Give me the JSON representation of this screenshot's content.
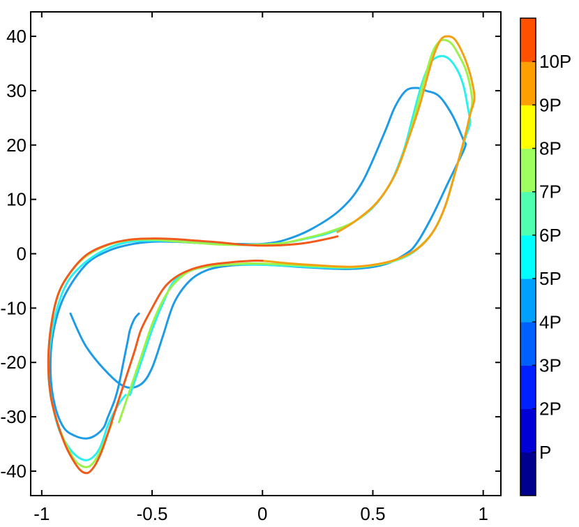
{
  "chart_data": {
    "type": "line",
    "title": "",
    "xlabel": "",
    "ylabel": "",
    "xlim": [
      -1.05,
      1.08
    ],
    "ylim": [
      -44.5,
      44.5
    ],
    "xticks": [
      -1,
      -0.5,
      0,
      0.5,
      1
    ],
    "xtick_labels": [
      "-1",
      "-0.5",
      "0",
      "0.5",
      "1"
    ],
    "yticks": [
      -40,
      -30,
      -20,
      -10,
      0,
      10,
      20,
      30,
      40
    ],
    "ytick_labels": [
      "-40",
      "-30",
      "-20",
      "-10",
      "0",
      "10",
      "20",
      "30",
      "40"
    ],
    "grid": false,
    "series": [
      {
        "color": "#1E9BE6",
        "x": [
          -0.87,
          -0.8,
          -0.7,
          -0.62,
          -0.55,
          -0.5,
          -0.45,
          -0.4,
          -0.33,
          -0.25,
          -0.15,
          -0.05,
          0.05,
          0.2,
          0.4,
          0.55,
          0.65,
          0.7,
          0.77,
          0.84,
          0.9,
          0.92,
          0.91,
          0.86,
          0.8,
          0.74,
          0.7,
          0.65,
          0.6,
          0.55,
          0.45,
          0.35,
          0.22,
          0.1,
          0.0,
          -0.1,
          -0.2,
          -0.3,
          -0.4,
          -0.5,
          -0.6,
          -0.7,
          -0.8,
          -0.9,
          -0.95,
          -0.96,
          -0.94,
          -0.9,
          -0.85,
          -0.8,
          -0.76,
          -0.72,
          -0.7,
          -0.67,
          -0.65,
          -0.63,
          -0.61,
          -0.6,
          -0.58,
          -0.56
        ],
        "y": [
          -11,
          -17,
          -22,
          -24.5,
          -24,
          -21,
          -15,
          -9,
          -5,
          -3,
          -2.2,
          -2,
          -2.1,
          -2.5,
          -2.8,
          -2,
          0,
          2,
          7,
          13,
          18,
          20,
          21,
          25.5,
          29,
          30,
          30.5,
          30,
          27,
          22,
          13,
          8,
          4.5,
          2.5,
          1.8,
          1.8,
          1.8,
          2.0,
          2.2,
          2.2,
          1.7,
          0.5,
          -2.0,
          -8,
          -15,
          -22,
          -28,
          -32,
          -33.5,
          -34,
          -33.5,
          -32,
          -30,
          -27,
          -24,
          -20,
          -16,
          -14,
          -12,
          -11
        ]
      },
      {
        "color": "#2AF0EE",
        "x": [
          -0.6,
          -0.55,
          -0.5,
          -0.45,
          -0.4,
          -0.33,
          -0.25,
          -0.15,
          -0.05,
          0.05,
          0.2,
          0.4,
          0.55,
          0.65,
          0.72,
          0.78,
          0.83,
          0.88,
          0.92,
          0.94,
          0.93,
          0.91,
          0.88,
          0.84,
          0.8,
          0.76,
          0.72,
          0.68,
          0.64,
          0.58,
          0.5,
          0.4,
          0.3,
          0.2,
          0.1,
          0.0,
          -0.1,
          -0.2,
          -0.3,
          -0.4,
          -0.5,
          -0.6,
          -0.7,
          -0.8,
          -0.88,
          -0.93,
          -0.96,
          -0.97,
          -0.95,
          -0.92,
          -0.88,
          -0.84,
          -0.8,
          -0.77,
          -0.74,
          -0.72,
          -0.7,
          -0.67,
          -0.64,
          -0.62
        ],
        "y": [
          -26,
          -20,
          -14,
          -9,
          -5,
          -3.2,
          -2.3,
          -2.0,
          -2.0,
          -2.1,
          -2.4,
          -2.6,
          -1.8,
          -0.5,
          1.5,
          4.5,
          9,
          16,
          21.5,
          24,
          27,
          31,
          34,
          36,
          36.3,
          35,
          31,
          25,
          19,
          13,
          8.5,
          5.5,
          3.8,
          2.8,
          2.0,
          1.7,
          1.7,
          1.9,
          2.1,
          2.3,
          2.4,
          2.2,
          1.0,
          -1.5,
          -5,
          -10,
          -16,
          -22,
          -28,
          -32.5,
          -35.5,
          -37.3,
          -38,
          -37.5,
          -36,
          -34,
          -31.5,
          -29,
          -27,
          -26
        ]
      },
      {
        "color": "#9BF24A",
        "x": [
          -0.65,
          -0.6,
          -0.55,
          -0.5,
          -0.45,
          -0.4,
          -0.33,
          -0.25,
          -0.15,
          -0.05,
          0.05,
          0.2,
          0.4,
          0.55,
          0.65,
          0.72,
          0.78,
          0.83,
          0.88,
          0.92,
          0.94,
          0.95,
          0.94,
          0.92,
          0.89,
          0.86,
          0.83,
          0.8,
          0.77,
          0.74,
          0.7,
          0.66,
          0.6,
          0.52,
          0.42,
          0.3,
          0.2,
          0.1,
          0.0,
          -0.1,
          -0.2,
          -0.3,
          -0.4,
          -0.5,
          -0.6,
          -0.7,
          -0.8,
          -0.88,
          -0.93,
          -0.96,
          -0.97,
          -0.96,
          -0.93,
          -0.89,
          -0.85,
          -0.81,
          -0.78,
          -0.75,
          -0.72,
          -0.68
        ],
        "y": [
          -31,
          -25,
          -19,
          -13,
          -8.5,
          -5.5,
          -3.2,
          -2.4,
          -2.0,
          -1.8,
          -1.9,
          -2.2,
          -2.5,
          -1.8,
          -0.4,
          1.6,
          4.5,
          9,
          16,
          22,
          25.5,
          28,
          31,
          34,
          36.5,
          38.5,
          39.3,
          39,
          37,
          33,
          27,
          21,
          14.5,
          9.5,
          6,
          4,
          2.9,
          2.0,
          1.7,
          1.6,
          1.7,
          2.0,
          2.3,
          2.6,
          2.5,
          1.6,
          -0.5,
          -4,
          -8,
          -14,
          -20,
          -26,
          -31,
          -35,
          -38,
          -39.2,
          -39,
          -37.5,
          -35,
          -31
        ]
      },
      {
        "color": "#F4A012",
        "x": [
          0.0,
          0.1,
          0.2,
          0.4,
          0.55,
          0.65,
          0.72,
          0.78,
          0.83,
          0.88,
          0.92,
          0.94,
          0.96,
          0.95,
          0.93,
          0.9,
          0.87,
          0.84,
          0.81,
          0.78,
          0.75,
          0.71,
          0.66,
          0.6,
          0.52,
          0.42,
          0.34
        ],
        "y": [
          -1.3,
          -1.7,
          -2.0,
          -2.4,
          -1.7,
          -0.3,
          1.5,
          4.5,
          9,
          16,
          22,
          25.5,
          28.5,
          31.5,
          34.5,
          37.5,
          39.5,
          40,
          39.5,
          37,
          33,
          27,
          21,
          14.5,
          9.5,
          6,
          4
        ]
      },
      {
        "color": "#F05A1A",
        "x": [
          0.34,
          0.3,
          0.2,
          0.1,
          0.0,
          -0.1,
          -0.2,
          -0.3,
          -0.4,
          -0.5,
          -0.6,
          -0.7,
          -0.8,
          -0.88,
          -0.93,
          -0.96,
          -0.97,
          -0.96,
          -0.93,
          -0.89,
          -0.85,
          -0.82,
          -0.79,
          -0.76,
          -0.73,
          -0.7,
          -0.66,
          -0.62,
          -0.58,
          -0.55,
          -0.5,
          -0.45,
          -0.4,
          -0.33,
          -0.25,
          -0.15,
          -0.05,
          0.0
        ],
        "y": [
          3.2,
          2.8,
          2.0,
          1.6,
          1.5,
          1.7,
          2.1,
          2.4,
          2.7,
          2.8,
          2.6,
          1.7,
          -0.3,
          -4,
          -8,
          -14,
          -20,
          -26,
          -31,
          -35.5,
          -38.5,
          -40,
          -40.3,
          -39,
          -36.5,
          -33,
          -28,
          -23,
          -18,
          -14,
          -10,
          -6.5,
          -4.5,
          -3,
          -2.1,
          -1.6,
          -1.3,
          -1.3
        ]
      }
    ],
    "colorbar": {
      "labels": [
        "P",
        "2P",
        "3P",
        "4P",
        "5P",
        "6P",
        "7P",
        "8P",
        "9P",
        "10P"
      ],
      "colors": [
        "#00008F",
        "#0000D6",
        "#0020FF",
        "#0060FF",
        "#00A0FF",
        "#00FFFF",
        "#50FFB0",
        "#A0FF60",
        "#FFFF00",
        "#FFA000",
        "#FF5000"
      ]
    }
  }
}
